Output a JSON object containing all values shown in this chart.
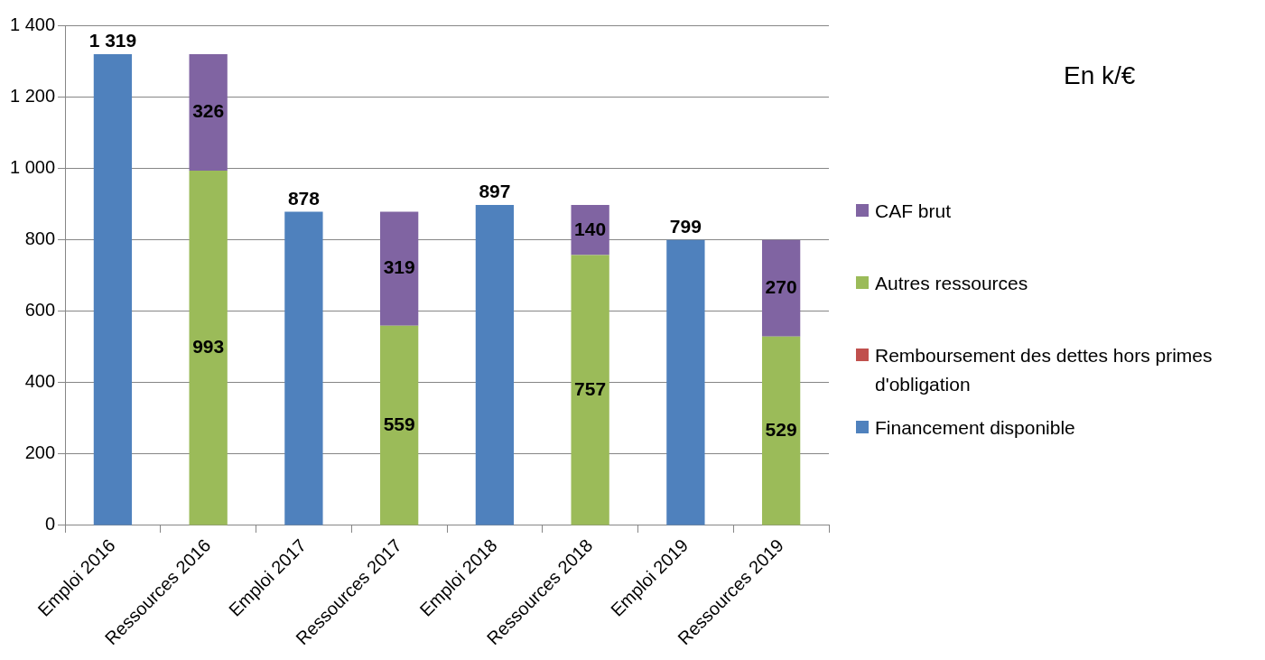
{
  "chart_data": {
    "type": "bar",
    "stacked": true,
    "categories": [
      "Emploi 2016",
      "Ressources 2016",
      "Emploi 2017",
      "Ressources 2017",
      "Emploi 2018",
      "Ressources 2018",
      "Emploi 2019",
      "Ressources 2019"
    ],
    "series": [
      {
        "name": "Financement disponible",
        "color": "#4f81bd",
        "values": [
          1319,
          null,
          878,
          null,
          897,
          null,
          799,
          null
        ],
        "value_labels": [
          "1 319",
          null,
          "878",
          null,
          "897",
          null,
          "799",
          null
        ]
      },
      {
        "name": "Remboursement des dettes hors primes d'obligation",
        "color": "#c0504d",
        "values": [
          null,
          null,
          null,
          null,
          null,
          null,
          null,
          null
        ]
      },
      {
        "name": "Autres ressources",
        "color": "#9bbb59",
        "values": [
          null,
          993,
          null,
          559,
          null,
          757,
          null,
          529
        ],
        "value_labels": [
          null,
          "993",
          null,
          "559",
          null,
          "757",
          null,
          "529"
        ]
      },
      {
        "name": "CAF brut",
        "color": "#8064a2",
        "values": [
          null,
          326,
          null,
          319,
          null,
          140,
          null,
          270
        ],
        "value_labels": [
          null,
          "326",
          null,
          "319",
          null,
          "140",
          null,
          "270"
        ]
      }
    ],
    "ylim": [
      0,
      1400
    ],
    "yticks": [
      0,
      200,
      400,
      600,
      800,
      {
        "value": 1000,
        "label": "1 000"
      },
      {
        "value": 1200,
        "label": "1 200"
      },
      {
        "value": 1400,
        "label": "1 400"
      }
    ],
    "grid": "y",
    "legend": "right",
    "annotations": [
      "En k/€"
    ]
  }
}
